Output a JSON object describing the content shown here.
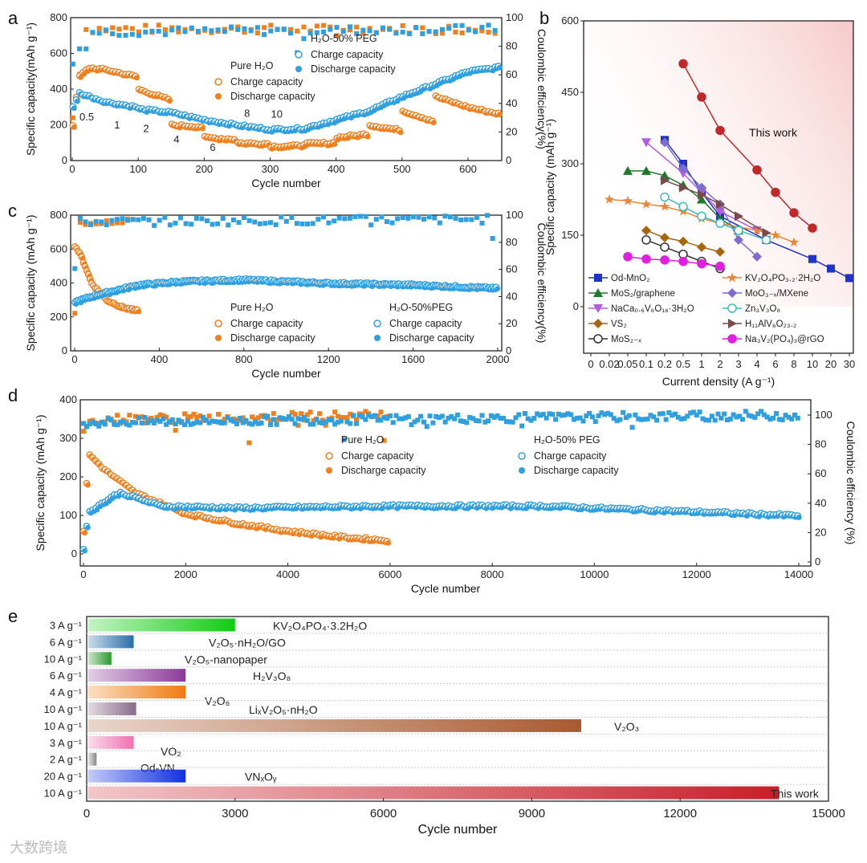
{
  "panel_labels": [
    "a",
    "b",
    "c",
    "d",
    "e"
  ],
  "watermark": "大数跨境",
  "chart_data": [
    {
      "id": "a",
      "type": "scatter",
      "xlabel": "Cycle number",
      "ylabel": "Specific capacity(mAh g⁻¹)",
      "y2label": "Coulombic efficiency(%)",
      "xlim": [
        0,
        650
      ],
      "ylim": [
        0,
        800
      ],
      "y2lim": [
        0,
        100
      ],
      "xticks": [
        "0",
        "100",
        "200",
        "300",
        "400",
        "500",
        "600"
      ],
      "yticks": [
        "0",
        "200",
        "400",
        "600",
        "800"
      ],
      "y2ticks": [
        "0",
        "20",
        "40",
        "60",
        "80",
        "100"
      ],
      "legend": {
        "pure_title": "Pure H₂O",
        "peg_title": "H₂O-50% PEG",
        "charge": "Charge capacity",
        "discharge": "Discharge capacity"
      },
      "rate_labels": [
        {
          "text": "0.5",
          "x": 22,
          "y": 225
        },
        {
          "text": "1",
          "x": 68,
          "y": 180
        },
        {
          "text": "2",
          "x": 112,
          "y": 160
        },
        {
          "text": "4",
          "x": 158,
          "y": 100
        },
        {
          "text": "6",
          "x": 213,
          "y": 55
        },
        {
          "text": "8",
          "x": 265,
          "y": 245
        },
        {
          "text": "10",
          "x": 310,
          "y": 240
        }
      ],
      "series": [
        {
          "name": "Pure H₂O capacity",
          "color": "#f07f1e",
          "points": [
            [
              1,
              200
            ],
            [
              10,
              470
            ],
            [
              25,
              520
            ],
            [
              50,
              510
            ],
            [
              99,
              470
            ],
            [
              100,
              400
            ],
            [
              149,
              340
            ],
            [
              150,
              200
            ],
            [
              199,
              190
            ],
            [
              200,
              130
            ],
            [
              249,
              120
            ],
            [
              250,
              100
            ],
            [
              299,
              95
            ],
            [
              300,
              80
            ],
            [
              349,
              85
            ],
            [
              350,
              95
            ],
            [
              399,
              100
            ],
            [
              400,
              130
            ],
            [
              449,
              150
            ],
            [
              450,
              200
            ],
            [
              499,
              170
            ],
            [
              500,
              280
            ],
            [
              549,
              220
            ],
            [
              550,
              360
            ],
            [
              600,
              300
            ],
            [
              650,
              260
            ]
          ]
        },
        {
          "name": "H₂O-50% PEG capacity",
          "color": "#2f9fe0",
          "points": [
            [
              1,
              300
            ],
            [
              10,
              380
            ],
            [
              50,
              330
            ],
            [
              99,
              300
            ],
            [
              100,
              290
            ],
            [
              150,
              270
            ],
            [
              200,
              230
            ],
            [
              250,
              200
            ],
            [
              300,
              175
            ],
            [
              350,
              180
            ],
            [
              400,
              230
            ],
            [
              450,
              280
            ],
            [
              500,
              360
            ],
            [
              550,
              430
            ],
            [
              600,
              500
            ],
            [
              650,
              525
            ]
          ]
        },
        {
          "name": "Pure H₂O CE",
          "color": "#f07f1e",
          "points": [
            [
              1,
              30
            ],
            [
              20,
              92
            ],
            [
              650,
              92
            ]
          ]
        },
        {
          "name": "H₂O-50% PEG CE",
          "color": "#2f9fe0",
          "points": [
            [
              1,
              70
            ],
            [
              20,
              90
            ],
            [
              650,
              92
            ]
          ]
        }
      ]
    },
    {
      "id": "b",
      "type": "line",
      "xlabel": "Current density (A g⁻¹)",
      "ylabel": "Specific capacity (mAh g⁻¹)",
      "ylim": [
        0,
        600
      ],
      "xticks": [
        "0",
        "0.02",
        "0.05",
        "0.1",
        "0.2",
        "0.5",
        "1",
        "2",
        "3",
        "4",
        "6",
        "8",
        "10",
        "20",
        "30"
      ],
      "yticks": [
        "0",
        "150",
        "300",
        "450",
        "600"
      ],
      "annotation": "This work",
      "series": [
        {
          "name": "This work",
          "color": "#c0282a",
          "marker": "circle",
          "x": [
            0.5,
            1,
            2,
            4,
            6,
            8,
            10
          ],
          "y": [
            510,
            440,
            370,
            287,
            240,
            197,
            165
          ]
        },
        {
          "name": "Od-MnO₂",
          "color": "#1f33c8",
          "marker": "square",
          "x": [
            0.2,
            0.5,
            1,
            2,
            5,
            10,
            20,
            30
          ],
          "y": [
            350,
            300,
            240,
            190,
            140,
            100,
            80,
            60
          ]
        },
        {
          "name": "MoS₂/graphene",
          "color": "#1e7a2a",
          "marker": "triangle",
          "x": [
            0.05,
            0.1,
            0.2,
            0.5,
            1,
            2,
            3
          ],
          "y": [
            285,
            285,
            275,
            255,
            225,
            185,
            160
          ]
        },
        {
          "name": "NaCa₀.₆V₆O₁₆·3H₂O",
          "color": "#b55be0",
          "marker": "tri-down",
          "x": [
            0.1,
            0.5,
            1,
            2,
            4
          ],
          "y": [
            345,
            280,
            240,
            200,
            160
          ]
        },
        {
          "name": "VS₂",
          "color": "#a8650f",
          "marker": "diamond",
          "x": [
            0.1,
            0.2,
            0.5,
            1,
            2
          ],
          "y": [
            160,
            145,
            137,
            125,
            115
          ]
        },
        {
          "name": "MoS₂₋ₓ",
          "color": "#333333",
          "marker": "half-circle",
          "x": [
            0.1,
            0.2,
            0.5,
            1,
            2
          ],
          "y": [
            140,
            125,
            110,
            95,
            80
          ]
        },
        {
          "name": "KV₂O₄PO₃.₂·2H₂O",
          "color": "#e8873a",
          "marker": "star",
          "x": [
            0.02,
            0.05,
            0.1,
            0.2,
            0.5,
            1,
            2,
            4,
            6,
            8
          ],
          "y": [
            225,
            222,
            215,
            210,
            200,
            185,
            175,
            160,
            150,
            135
          ]
        },
        {
          "name": "MoO₃₋ₓ/MXene",
          "color": "#7d6cd0",
          "marker": "diamond",
          "x": [
            0.2,
            0.5,
            1,
            2,
            3,
            4
          ],
          "y": [
            345,
            290,
            250,
            215,
            140,
            105
          ]
        },
        {
          "name": "Zn₃V₃O₈",
          "color": "#3fbcbc",
          "marker": "half-circle",
          "x": [
            0.2,
            0.5,
            1,
            2,
            3,
            5
          ],
          "y": [
            230,
            210,
            190,
            175,
            160,
            140
          ]
        },
        {
          "name": "H₁₁AlV₆O₂₃.₂",
          "color": "#7a4a4a",
          "marker": "tri-right",
          "x": [
            0.2,
            0.5,
            1,
            2,
            3,
            5
          ],
          "y": [
            265,
            250,
            235,
            215,
            190,
            155
          ]
        },
        {
          "name": "Na₃V₂(PO₄)₃@rGO",
          "color": "#e01fe0",
          "marker": "hexagon",
          "x": [
            0.05,
            0.1,
            0.2,
            0.5,
            1,
            2
          ],
          "y": [
            105,
            100,
            98,
            95,
            90,
            85
          ]
        }
      ]
    },
    {
      "id": "c",
      "type": "scatter",
      "xlabel": "Cycle number",
      "ylabel": "Specific capacity (mAh g⁻¹)",
      "y2label": "Coulombic efficiency(%)",
      "xlim": [
        0,
        2000
      ],
      "ylim": [
        0,
        800
      ],
      "y2lim": [
        0,
        100
      ],
      "xticks": [
        "0",
        "400",
        "800",
        "1200",
        "1600",
        "2000"
      ],
      "yticks": [
        "0",
        "200",
        "400",
        "600",
        "800"
      ],
      "y2ticks": [
        "0",
        "20",
        "40",
        "60",
        "80",
        "100"
      ],
      "legend": {
        "pure_title": "Pure H₂O",
        "peg_title": "H₂O-50%PEG",
        "charge": "Charge capacity",
        "discharge": "Discharge capacity"
      },
      "series": [
        {
          "name": "Pure H₂O capacity",
          "color": "#f07f1e",
          "points": [
            [
              1,
              620
            ],
            [
              30,
              560
            ],
            [
              80,
              400
            ],
            [
              150,
              300
            ],
            [
              220,
              260
            ],
            [
              300,
              235
            ]
          ]
        },
        {
          "name": "H₂O-50% PEG capacity",
          "color": "#2f9fe0",
          "points": [
            [
              1,
              290
            ],
            [
              100,
              330
            ],
            [
              300,
              390
            ],
            [
              500,
              410
            ],
            [
              800,
              420
            ],
            [
              1200,
              400
            ],
            [
              1600,
              390
            ],
            [
              2000,
              370
            ]
          ]
        },
        {
          "name": "Pure H₂O CE",
          "color": "#f07f1e",
          "points": [
            [
              1,
              30
            ],
            [
              20,
              95
            ],
            [
              300,
              97
            ]
          ]
        },
        {
          "name": "H₂O-50% PEG CE",
          "color": "#2f9fe0",
          "points": [
            [
              1,
              60
            ],
            [
              20,
              95
            ],
            [
              2000,
              97
            ]
          ]
        }
      ]
    },
    {
      "id": "d",
      "type": "scatter",
      "xlabel": "Cycle number",
      "ylabel": "Specific capacity (mAh g⁻¹)",
      "y2label": "Coulombic efficiency (%)",
      "xlim": [
        0,
        14000
      ],
      "ylim": [
        0,
        400
      ],
      "y2lim": [
        0,
        100
      ],
      "xticks": [
        "0",
        "2000",
        "4000",
        "6000",
        "8000",
        "10000",
        "12000",
        "14000"
      ],
      "yticks": [
        "0",
        "100",
        "200",
        "300",
        "400"
      ],
      "y2ticks": [
        "0",
        "20",
        "40",
        "60",
        "80",
        "100"
      ],
      "legend": {
        "pure_title": "Pure H₂O",
        "peg_title": "H₂O-50% PEG",
        "charge": "Charge capacity",
        "discharge": "Discharge capacity"
      },
      "series": [
        {
          "name": "Pure H₂O capacity",
          "color": "#f07f1e",
          "points": [
            [
              1,
              60
            ],
            [
              100,
              260
            ],
            [
              400,
              220
            ],
            [
              1000,
              160
            ],
            [
              2000,
              105
            ],
            [
              3000,
              80
            ],
            [
              4000,
              60
            ],
            [
              5000,
              45
            ],
            [
              6000,
              35
            ]
          ]
        },
        {
          "name": "H₂O-50% PEG capacity",
          "color": "#2f9fe0",
          "points": [
            [
              1,
              10
            ],
            [
              100,
              110
            ],
            [
              700,
              160
            ],
            [
              1500,
              125
            ],
            [
              3000,
              120
            ],
            [
              6000,
              125
            ],
            [
              9000,
              125
            ],
            [
              12000,
              110
            ],
            [
              14000,
              100
            ]
          ]
        },
        {
          "name": "Pure H₂O CE",
          "color": "#f07f1e",
          "points": [
            [
              1,
              90
            ],
            [
              200,
              97
            ],
            [
              6000,
              100
            ]
          ]
        },
        {
          "name": "H₂O-50% PEG CE",
          "color": "#2f9fe0",
          "points": [
            [
              1,
              95
            ],
            [
              14000,
              100
            ]
          ]
        }
      ]
    },
    {
      "id": "e",
      "type": "bar",
      "orientation": "horizontal",
      "xlabel": "Cycle number",
      "xlim": [
        0,
        15000
      ],
      "xticks": [
        "0",
        "3000",
        "6000",
        "9000",
        "12000",
        "15000"
      ],
      "bars": [
        {
          "rate": "3 A g⁻¹",
          "label": "KV₂O₄PO₄·3.2H₂O",
          "value": 3000,
          "color": "#11cc11",
          "label_color": "#33cc33"
        },
        {
          "rate": "6 A g⁻¹",
          "label": "V₂O₅·nH₂O/GO",
          "value": 950,
          "color": "#2a6fa8",
          "label_color": "#1f4a80"
        },
        {
          "rate": "10 A g⁻¹",
          "label": "V₂O₅-nanopaper",
          "value": 500,
          "color": "#2a9a2a",
          "label_color": "#228822"
        },
        {
          "rate": "6 A g⁻¹",
          "label": "H₂V₃O₈",
          "value": 2000,
          "color": "#8a3a9a",
          "label_color": "#b050c0"
        },
        {
          "rate": "4 A g⁻¹",
          "label": "V₂O₆",
          "value": 2000,
          "color": "#f07a10",
          "label_color": "#e09040"
        },
        {
          "rate": "10 A g⁻¹",
          "label": "LiₓV₂O₅·nH₂O",
          "value": 1000,
          "color": "#8a6a8a",
          "label_color": "#b090c0"
        },
        {
          "rate": "10 A g⁻¹",
          "label": "V₂O₃",
          "value": 10000,
          "color": "#a85a30",
          "label_color": "#9a7a10"
        },
        {
          "rate": "3 A g⁻¹",
          "label": "VO₂",
          "value": 950,
          "color": "#f070b0",
          "label_color": "#e8a0e0"
        },
        {
          "rate": "2 A g⁻¹",
          "label": "Od-VN",
          "value": 200,
          "color": "#888888",
          "label_color": "#bbbbbb"
        },
        {
          "rate": "20 A g⁻¹",
          "label": "VNₓOᵧ",
          "value": 2000,
          "color": "#1030e0",
          "label_color": "#10208a"
        },
        {
          "rate": "10 A g⁻¹",
          "label": "This work",
          "value": 14000,
          "color": "#c81e2a",
          "label_color": "#d02020"
        }
      ]
    }
  ]
}
